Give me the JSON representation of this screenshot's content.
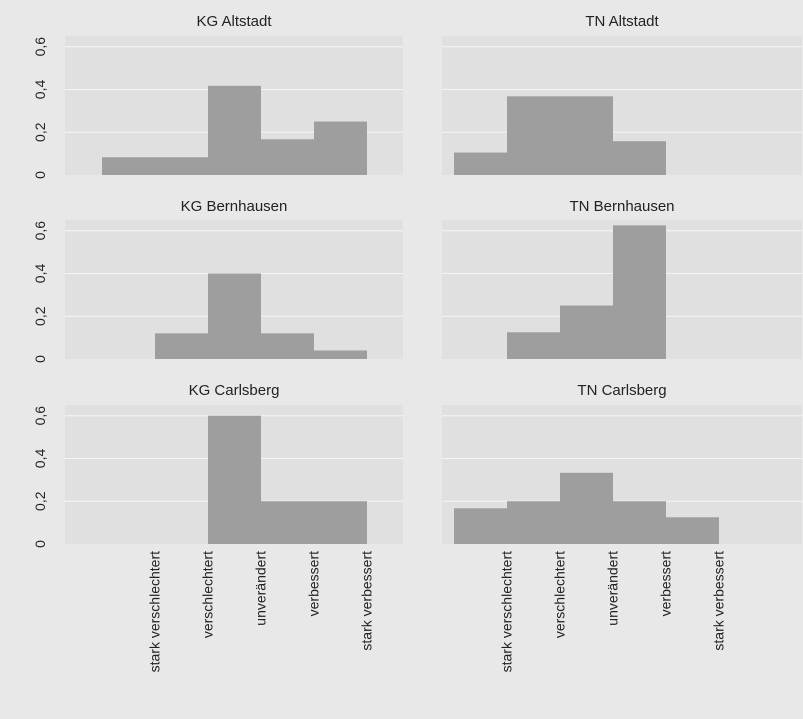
{
  "chart_data": {
    "type": "bar",
    "categories": [
      "stark verschlechtert",
      "verschlechtert",
      "unverändert",
      "verbessert",
      "stark verbessert"
    ],
    "ylim": [
      0,
      0.65
    ],
    "yticks": [
      "0",
      "0,2",
      "0,4",
      "0,6"
    ],
    "ytick_values": [
      0,
      0.2,
      0.4,
      0.6
    ],
    "grid": true,
    "bar_color": "#9e9e9e",
    "panel_background": "#e8e8e8",
    "plot_background": "#e0e0e0",
    "grid_color": "#f5f5f5",
    "panels": [
      {
        "title": "KG Altstadt",
        "values": [
          0.083,
          0.083,
          0.417,
          0.167,
          0.25
        ]
      },
      {
        "title": "TN Altstadt",
        "values": [
          0.105,
          0.368,
          0.368,
          0.158,
          0
        ]
      },
      {
        "title": "KG Bernhausen",
        "values": [
          0,
          0.12,
          0.4,
          0.12,
          0.04
        ]
      },
      {
        "title": "TN Bernhausen",
        "values": [
          0,
          0.125,
          0.25,
          0.625,
          0
        ]
      },
      {
        "title": "KG Carlsberg",
        "values": [
          0,
          0,
          0.6,
          0.2,
          0.2
        ]
      },
      {
        "title": "TN Carlsberg",
        "values": [
          0.167,
          0.2,
          0.333,
          0.2,
          0.125
        ]
      }
    ]
  }
}
